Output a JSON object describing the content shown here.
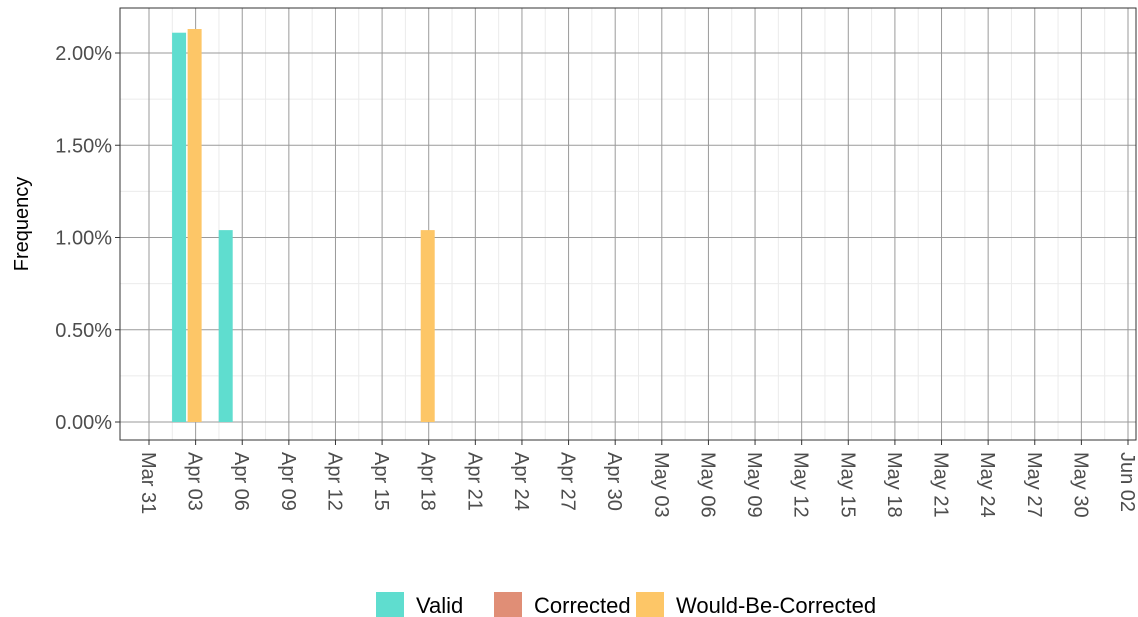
{
  "chart_data": {
    "type": "bar",
    "title": "",
    "xlabel": "",
    "ylabel": "Frequency",
    "x_ticks": [
      "Mar 31",
      "Apr 03",
      "Apr 06",
      "Apr 09",
      "Apr 12",
      "Apr 15",
      "Apr 18",
      "Apr 21",
      "Apr 24",
      "Apr 27",
      "Apr 30",
      "May 03",
      "May 06",
      "May 09",
      "May 12",
      "May 15",
      "May 18",
      "May 21",
      "May 24",
      "May 27",
      "May 30",
      "Jun 02"
    ],
    "x_range": [
      "Mar 29",
      "Jun 02"
    ],
    "y_ticks": [
      "0.00%",
      "0.50%",
      "1.00%",
      "1.50%",
      "2.00%"
    ],
    "ylim": [
      0,
      0.021
    ],
    "grid": true,
    "legend_position": "bottom",
    "series": [
      {
        "name": "Valid",
        "color": "#5FDDCF",
        "points": [
          {
            "x": "Apr 02",
            "y": 0.0211
          },
          {
            "x": "Apr 05",
            "y": 0.0104
          }
        ]
      },
      {
        "name": "Corrected",
        "color": "#E08E76",
        "points": []
      },
      {
        "name": "Would-Be-Corrected",
        "color": "#FDC667",
        "points": [
          {
            "x": "Apr 03",
            "y": 0.0213
          },
          {
            "x": "Apr 18",
            "y": 0.0104
          }
        ]
      }
    ]
  }
}
